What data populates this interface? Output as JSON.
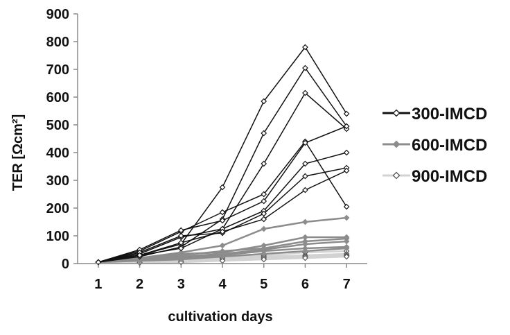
{
  "chart_data": {
    "type": "line",
    "title": "",
    "xlabel": "cultivation days",
    "ylabel": "TER [Ωcm²]",
    "x": [
      1,
      2,
      3,
      4,
      5,
      6,
      7
    ],
    "xlim": [
      0.5,
      7.5
    ],
    "ylim": [
      0,
      900
    ],
    "yticks": [
      0,
      100,
      200,
      300,
      400,
      500,
      600,
      700,
      800,
      900
    ],
    "grid": false,
    "legend_position": "right",
    "groups": [
      {
        "name": "300-IMCD",
        "color": "#111111",
        "marker": "diamond",
        "marker_fill": "#ffffff"
      },
      {
        "name": "600-IMCD",
        "color": "#8c8c8c",
        "marker": "diamond",
        "marker_fill": "#8c8c8c"
      },
      {
        "name": "900-IMCD",
        "color": "#d2d2d2",
        "marker": "diamond",
        "marker_fill": "#ffffff"
      }
    ],
    "series": [
      {
        "group": "300-IMCD",
        "values": [
          5,
          30,
          70,
          275,
          585,
          780,
          540
        ]
      },
      {
        "group": "300-IMCD",
        "values": [
          5,
          25,
          60,
          160,
          470,
          705,
          495
        ]
      },
      {
        "group": "300-IMCD",
        "values": [
          5,
          30,
          55,
          125,
          360,
          615,
          485
        ]
      },
      {
        "group": "300-IMCD",
        "values": [
          5,
          45,
          115,
          185,
          250,
          440,
          205
        ]
      },
      {
        "group": "300-IMCD",
        "values": [
          5,
          50,
          120,
          155,
          225,
          435,
          495
        ]
      },
      {
        "group": "300-IMCD",
        "values": [
          5,
          35,
          95,
          125,
          190,
          360,
          400
        ]
      },
      {
        "group": "300-IMCD",
        "values": [
          5,
          40,
          100,
          110,
          180,
          315,
          345
        ]
      },
      {
        "group": "300-IMCD",
        "values": [
          5,
          30,
          75,
          115,
          160,
          265,
          335
        ]
      },
      {
        "group": "600-IMCD",
        "values": [
          5,
          20,
          40,
          65,
          125,
          150,
          165
        ]
      },
      {
        "group": "600-IMCD",
        "values": [
          5,
          20,
          35,
          40,
          65,
          95,
          95
        ]
      },
      {
        "group": "600-IMCD",
        "values": [
          5,
          20,
          30,
          45,
          55,
          80,
          90
        ]
      },
      {
        "group": "600-IMCD",
        "values": [
          5,
          15,
          25,
          35,
          50,
          70,
          80
        ]
      },
      {
        "group": "600-IMCD",
        "values": [
          5,
          15,
          20,
          30,
          45,
          55,
          60
        ]
      },
      {
        "group": "600-IMCD",
        "values": [
          5,
          10,
          15,
          25,
          35,
          45,
          55
        ]
      },
      {
        "group": "900-IMCD",
        "values": [
          5,
          10,
          20,
          25,
          30,
          40,
          45
        ]
      },
      {
        "group": "900-IMCD",
        "values": [
          5,
          8,
          15,
          20,
          25,
          30,
          35
        ]
      },
      {
        "group": "900-IMCD",
        "values": [
          5,
          5,
          10,
          15,
          25,
          28,
          30
        ]
      },
      {
        "group": "900-IMCD",
        "values": [
          5,
          5,
          8,
          12,
          20,
          25,
          28
        ]
      },
      {
        "group": "900-IMCD",
        "values": [
          5,
          3,
          5,
          10,
          15,
          20,
          25
        ]
      }
    ]
  }
}
